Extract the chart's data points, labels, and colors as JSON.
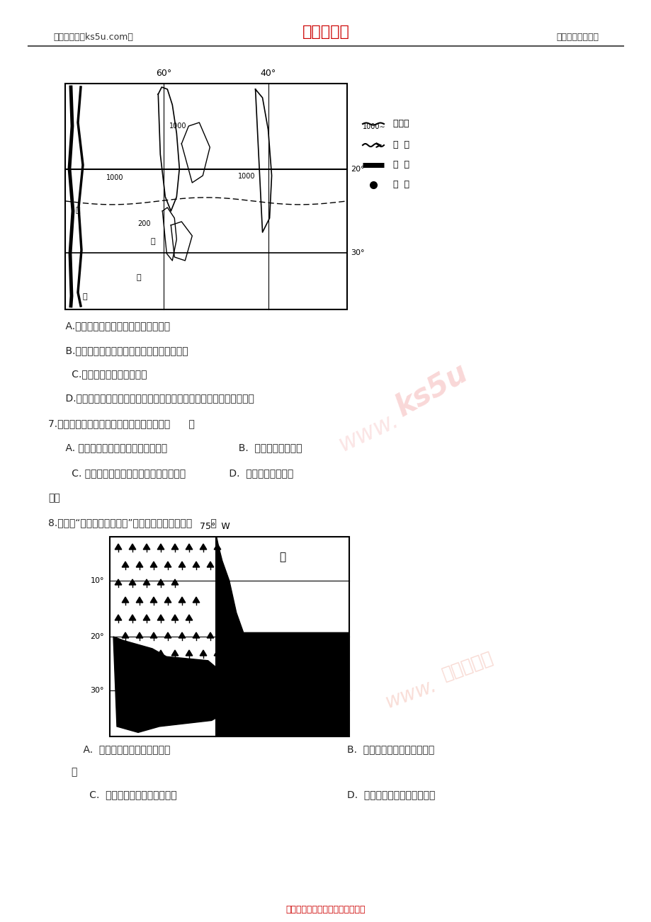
{
  "bg_color": "#ffffff",
  "header_left": "高考资源网（ks5u.com）",
  "header_center": "高考资源网",
  "header_right": "您身边的高考专家",
  "header_center_color": "#cc0000",
  "header_text_color": "#333333",
  "footer_text": "高考资源网版权所有，侵权必究！",
  "footer_color": "#cc0000"
}
